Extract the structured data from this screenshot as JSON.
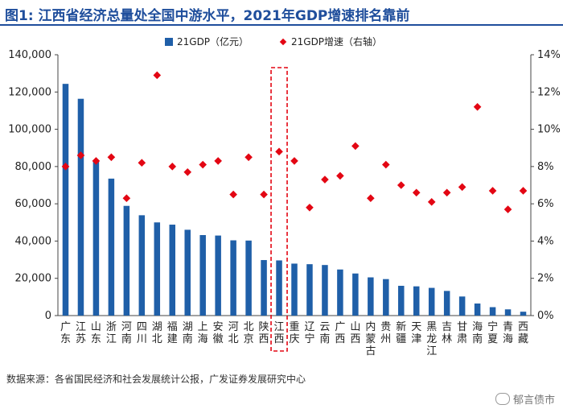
{
  "title": "图1:  江西省经济总量处全国中游水平，2021年GDP增速排名靠前",
  "source": "数据来源：各省国民经济和社会发展统计公报，广发证券发展研究中心",
  "watermark": "郁言债市",
  "chart_data": {
    "type": "bar",
    "categories": [
      "广东",
      "江苏",
      "山东",
      "浙江",
      "河南",
      "四川",
      "湖北",
      "福建",
      "湖南",
      "上海",
      "安徽",
      "河北",
      "北京",
      "陕西",
      "江西",
      "重庆",
      "辽宁",
      "云南",
      "广西",
      "山西",
      "内蒙古",
      "贵州",
      "新疆",
      "天津",
      "黑龙江",
      "吉林",
      "甘肃",
      "海南",
      "宁夏",
      "青海",
      "西藏"
    ],
    "series": [
      {
        "name": "21GDP（亿元）",
        "type": "bar",
        "axis": "left",
        "color": "#1f5fa8",
        "values": [
          124370,
          116364,
          83096,
          73516,
          58887,
          53851,
          50013,
          48810,
          46063,
          43215,
          42959,
          40391,
          40270,
          29801,
          29620,
          27894,
          27584,
          27147,
          24741,
          22590,
          20514,
          19586,
          15983,
          15695,
          14879,
          13236,
          10243,
          6475,
          4522,
          3347,
          2080
        ]
      },
      {
        "name": "21GDP增速（右轴）",
        "type": "scatter",
        "axis": "right",
        "color": "#e30613",
        "values": [
          8.0,
          8.6,
          8.3,
          8.5,
          6.3,
          8.2,
          12.9,
          8.0,
          7.7,
          8.1,
          8.3,
          6.5,
          8.5,
          6.5,
          8.8,
          8.3,
          5.8,
          7.3,
          7.5,
          9.1,
          6.3,
          8.1,
          7.0,
          6.6,
          6.1,
          6.6,
          6.9,
          11.2,
          6.7,
          5.7,
          6.7
        ]
      }
    ],
    "left_axis": {
      "min": 0,
      "max": 140000,
      "ticks": [
        "0",
        "20,000",
        "40,000",
        "60,000",
        "80,000",
        "100,000",
        "120,000",
        "140,000"
      ]
    },
    "right_axis": {
      "min": 0,
      "max": 14,
      "ticks": [
        "0%",
        "2%",
        "4%",
        "6%",
        "8%",
        "10%",
        "12%",
        "14%"
      ]
    },
    "highlight_category": "江西",
    "legend_position": "top"
  }
}
